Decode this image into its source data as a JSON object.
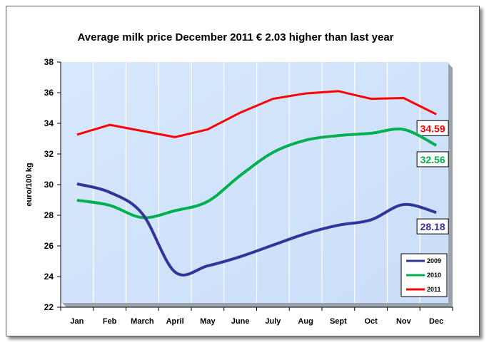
{
  "chart_data": {
    "type": "line",
    "title": "Average milk price December 2011 € 2.03 higher than last year",
    "xlabel": "",
    "ylabel": "euro/100 kg",
    "ylim": [
      22,
      38
    ],
    "yticks": [
      22,
      24,
      26,
      28,
      30,
      32,
      34,
      36,
      38
    ],
    "categories": [
      "Jan",
      "Feb",
      "March",
      "April",
      "May",
      "June",
      "July",
      "Aug",
      "Sept",
      "Oct",
      "Nov",
      "Dec"
    ],
    "grid": "vertical",
    "legend": "bottom-right",
    "series": [
      {
        "name": "2009",
        "color": "#333399",
        "smooth": true,
        "values": [
          30.05,
          29.5,
          28.1,
          24.3,
          24.7,
          25.3,
          26.05,
          26.8,
          27.35,
          27.7,
          28.7,
          28.18
        ],
        "end_label": "28.18"
      },
      {
        "name": "2010",
        "color": "#00b050",
        "smooth": true,
        "values": [
          28.98,
          28.65,
          27.85,
          28.3,
          28.9,
          30.6,
          32.1,
          32.9,
          33.2,
          33.35,
          33.6,
          32.56
        ],
        "end_label": "32.56"
      },
      {
        "name": "2011",
        "color": "#ff0000",
        "smooth": false,
        "values": [
          33.26,
          33.9,
          33.5,
          33.1,
          33.6,
          34.7,
          35.6,
          35.95,
          36.1,
          35.6,
          35.65,
          34.59
        ],
        "end_label": "34.59"
      }
    ],
    "plot_background": "#cfe3fb"
  }
}
